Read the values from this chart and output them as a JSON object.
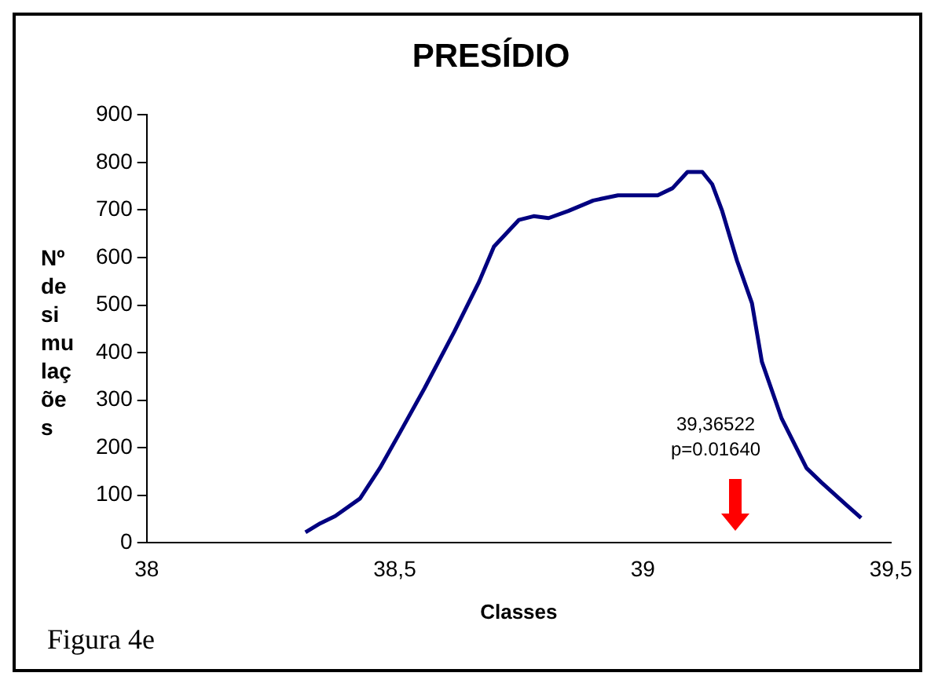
{
  "chart_data": {
    "type": "line",
    "title": "PRESÍDIO",
    "xlabel": "Classes",
    "ylabel": "Nº de simulações",
    "x": [
      38.32,
      38.35,
      38.38,
      38.43,
      38.47,
      38.51,
      38.56,
      38.62,
      38.67,
      38.7,
      38.75,
      38.78,
      38.81,
      38.85,
      38.9,
      38.95,
      39.03,
      39.06,
      39.09,
      39.12,
      39.14,
      39.16,
      39.19,
      39.22,
      39.24,
      39.28,
      39.33,
      39.36,
      39.41,
      39.44
    ],
    "values": [
      22,
      41,
      56,
      93,
      157,
      231,
      325,
      444,
      549,
      623,
      679,
      687,
      683,
      698,
      720,
      731,
      731,
      746,
      780,
      780,
      754,
      698,
      593,
      504,
      381,
      261,
      157,
      127,
      80,
      52
    ],
    "color": "#000080",
    "xlim": [
      38,
      39.5
    ],
    "xticks": [
      38,
      {
        "value": 38.5,
        "label": "38,5"
      },
      39,
      {
        "value": 39.5,
        "label": "39,5"
      }
    ],
    "ylim": [
      0,
      900
    ],
    "yticks": [
      0,
      100,
      200,
      300,
      400,
      500,
      600,
      700,
      800,
      900
    ],
    "grid": false,
    "legend": false,
    "marker": "none",
    "line_style": "solid",
    "annotations": [
      "Figura 4e",
      "39,36522 p=0.01640"
    ]
  }
}
